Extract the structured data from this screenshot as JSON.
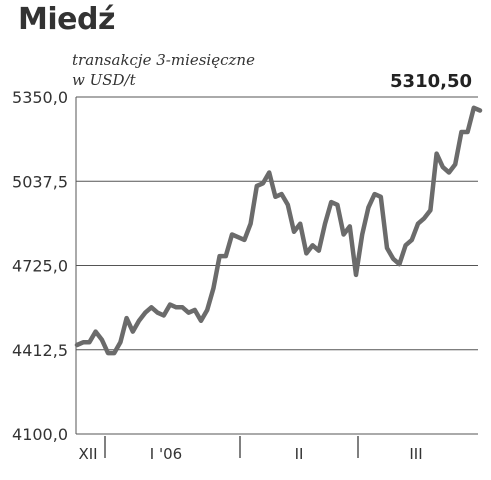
{
  "chart_data": {
    "type": "line",
    "title": "Miedź",
    "subtitle_lines": [
      "transakcje 3-miesięczne",
      "w USD/t"
    ],
    "last_value_label": "5310,50",
    "y_tick_labels": [
      "5350,0",
      "5037,5",
      "4725,0",
      "4412,5",
      "4100,0"
    ],
    "ylim": [
      4100,
      5350
    ],
    "y_ticks": [
      5350,
      5037.5,
      4725,
      4412.5,
      4100
    ],
    "x_tick_labels": [
      "XII",
      "I '06",
      "II",
      "III"
    ],
    "grid": "horizontal",
    "series": [
      {
        "color": "#6b6b6b",
        "values": [
          4430,
          4440,
          4440,
          4480,
          4450,
          4400,
          4400,
          4440,
          4530,
          4480,
          4520,
          4550,
          4570,
          4550,
          4540,
          4580,
          4570,
          4570,
          4550,
          4560,
          4520,
          4560,
          4640,
          4760,
          4760,
          4840,
          4830,
          4820,
          4880,
          5020,
          5030,
          5070,
          4980,
          4990,
          4950,
          4850,
          4880,
          4770,
          4800,
          4780,
          4880,
          4960,
          4950,
          4840,
          4870,
          4690,
          4840,
          4940,
          4990,
          4980,
          4790,
          4750,
          4730,
          4800,
          4820,
          4880,
          4900,
          4930,
          5140,
          5090,
          5070,
          5100,
          5220,
          5220,
          5310,
          5300
        ]
      }
    ]
  }
}
